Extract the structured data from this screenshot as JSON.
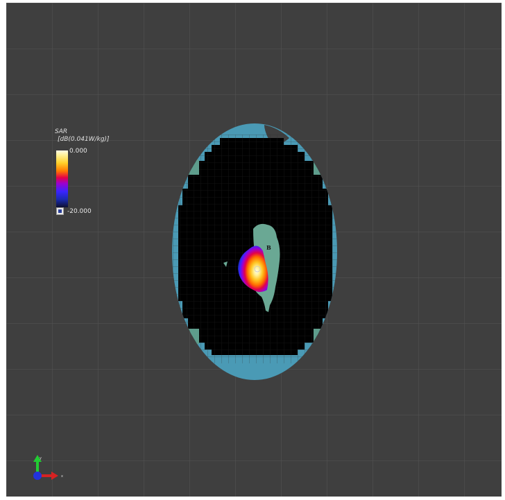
{
  "legend": {
    "title_line1": "SAR",
    "title_line2": "[dB(0.041W/kg)]",
    "max_label": "0.000",
    "min_label": "-20.000",
    "colormap_icon": "colormap-swatch-icon"
  },
  "probe": {
    "label": "B"
  },
  "axes": {
    "y_label": "y",
    "x_label": "x",
    "icon": "xyz-axes-icon"
  },
  "colors": {
    "viewport_background": "#3f3f3f",
    "grid_line": "#555555",
    "phantom_shell": "#4a9ab5",
    "phantom_liquid": "#000000",
    "mesh_line": "#2a2a2a",
    "antenna_region": "#6aa894",
    "hotspot_peak": "#fffbe8",
    "axis_x": "#d62222",
    "axis_y": "#22cc33",
    "axis_z": "#2233dd"
  }
}
